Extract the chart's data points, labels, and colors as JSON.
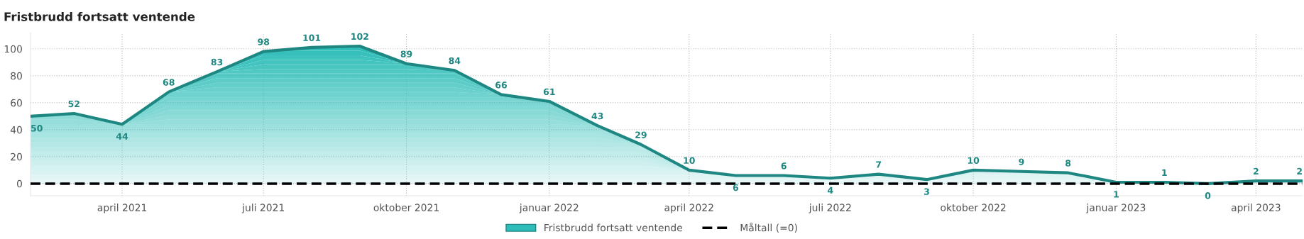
{
  "chart_data": {
    "type": "area",
    "title": "Fristbrudd fortsatt ventende",
    "x": [
      "2021-02-01",
      "2021-03-01",
      "2021-04-01",
      "2021-05-01",
      "2021-06-01",
      "2021-07-01",
      "2021-08-01",
      "2021-09-01",
      "2021-10-01",
      "2021-11-01",
      "2021-12-01",
      "2022-01-01",
      "2022-02-01",
      "2022-03-01",
      "2022-04-01",
      "2022-05-01",
      "2022-06-01",
      "2022-07-01",
      "2022-08-01",
      "2022-09-01",
      "2022-10-01",
      "2022-11-01",
      "2022-12-01",
      "2023-01-01",
      "2023-02-01",
      "2023-03-01",
      "2023-04-01",
      "2023-05-01"
    ],
    "series": [
      {
        "name": "Fristbrudd fortsatt ventende",
        "color": "#1e8782",
        "values": [
          50,
          52,
          44,
          68,
          83,
          98,
          101,
          102,
          89,
          84,
          66,
          61,
          43,
          29,
          10,
          6,
          6,
          4,
          7,
          3,
          10,
          9,
          8,
          1,
          1,
          0,
          2,
          2
        ]
      }
    ],
    "ref_lines": [
      {
        "axis": "y",
        "value": 0,
        "label": "Måltall (=0)",
        "color": "#000000",
        "line_style": "dashed"
      }
    ],
    "xlim": [
      "2021-02-01",
      "2023-05-01"
    ],
    "xticks": [
      {
        "value": "2021-04-01",
        "label": "april 2021"
      },
      {
        "value": "2021-07-01",
        "label": "juli 2021"
      },
      {
        "value": "2021-10-01",
        "label": "oktober 2021"
      },
      {
        "value": "2022-01-01",
        "label": "januar 2022"
      },
      {
        "value": "2022-04-01",
        "label": "april 2022"
      },
      {
        "value": "2022-07-01",
        "label": "juli 2022"
      },
      {
        "value": "2022-10-01",
        "label": "oktober 2022"
      },
      {
        "value": "2023-01-01",
        "label": "januar 2023"
      },
      {
        "value": "2023-04-01",
        "label": "april 2023"
      }
    ],
    "ylim": [
      -9,
      112
    ],
    "yticks": [
      0,
      20,
      40,
      60,
      80,
      100
    ],
    "grid": true,
    "legend": "bottom",
    "data_labels": true,
    "line_style": "solid",
    "marker": "none"
  }
}
